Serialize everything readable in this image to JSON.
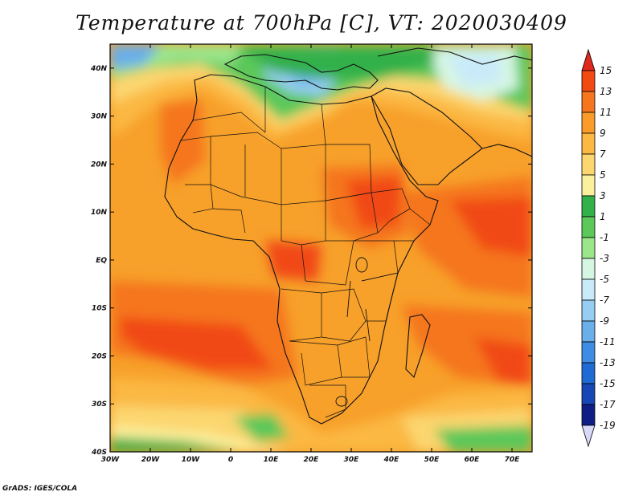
{
  "title": "Temperature at 700hPa [C], VT: 2020030409",
  "credit": "GrADS: IGES/COLA",
  "map": {
    "lat_ticks": [
      "40N",
      "30N",
      "20N",
      "10N",
      "EQ",
      "10S",
      "20S",
      "30S",
      "40S"
    ],
    "lon_ticks": [
      "30W",
      "20W",
      "10W",
      "0",
      "10E",
      "20E",
      "30E",
      "40E",
      "50E",
      "60E",
      "70E"
    ],
    "lat_range": [
      -40,
      45
    ],
    "lon_range": [
      -30,
      75
    ]
  },
  "colorbar": {
    "labels": [
      "15",
      "13",
      "11",
      "9",
      "7",
      "5",
      "3",
      "1",
      "-1",
      "-3",
      "-5",
      "-7",
      "-9",
      "-11",
      "-13",
      "-15",
      "-17",
      "-19"
    ],
    "colors": [
      "#e0291d",
      "#f14a12",
      "#f5761f",
      "#f99c2a",
      "#fbb843",
      "#fcd66f",
      "#fbf09c",
      "#32b04a",
      "#5cc85a",
      "#9be58b",
      "#d6f6e4",
      "#c9eaf9",
      "#96cdf3",
      "#6aaeea",
      "#3e8de2",
      "#1e6bd4",
      "#1746b5",
      "#0e1e84",
      "#d8d8f8"
    ]
  }
}
